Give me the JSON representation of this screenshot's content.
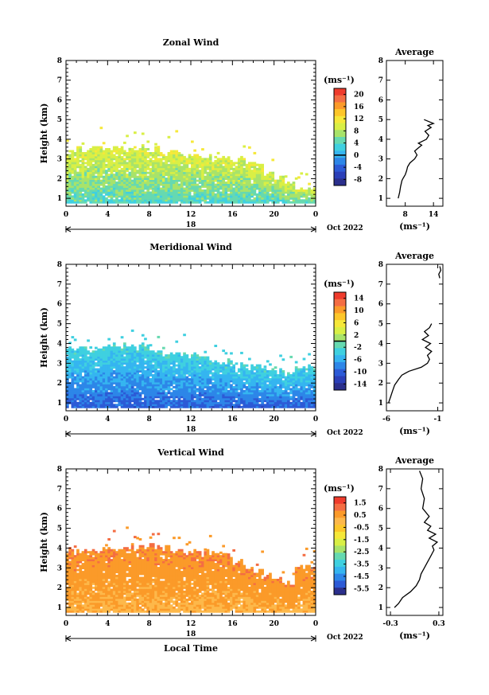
{
  "chart_data": [
    {
      "type": "heatmap",
      "title": "Zonal Wind",
      "ylabel": "Height (km)",
      "xlabel": "",
      "ylim": [
        0.6,
        8
      ],
      "xlim": [
        0,
        24
      ],
      "yticks": [
        "1",
        "2",
        "3",
        "4",
        "5",
        "6",
        "7",
        "8"
      ],
      "xticks": [
        "0",
        "4",
        "8",
        "12",
        "16",
        "20",
        "0"
      ],
      "day_label": "18",
      "date_label": "Oct 2022",
      "colorbar": {
        "unit": "(ms⁻¹)",
        "labels": [
          "20",
          "16",
          "12",
          "8",
          "4",
          "0",
          "-4",
          "-8"
        ],
        "colors": [
          "#ef3b2c",
          "#f46d43",
          "#fb9a29",
          "#fdc629",
          "#f6e839",
          "#d9ef45",
          "#a8e36a",
          "#66d9b0",
          "#3fd0e0",
          "#35b5f0",
          "#2d86e8",
          "#2c5ad6",
          "#2b3fb8",
          "#2b2f8c"
        ],
        "zero_line": true
      },
      "field": {
        "top_km": [
          3.4,
          3.4,
          3.45,
          3.4,
          3.5,
          3.4,
          3.5,
          3.6,
          3.4,
          3.3,
          3.3,
          3.2,
          3.2,
          3.1,
          3.0,
          3.0,
          3.0,
          2.8,
          2.6,
          2.3,
          2.0,
          1.6,
          1.4,
          1.4
        ],
        "base_value": 4,
        "top_value": 10,
        "noise": 4
      },
      "profile": {
        "title": "Average",
        "xlabel": "(ms⁻¹)",
        "xlim": [
          4,
          16
        ],
        "xticks": [
          "8",
          "14"
        ],
        "height": [
          1.0,
          1.3,
          1.6,
          1.9,
          2.0,
          2.2,
          2.4,
          2.6,
          2.8,
          3.0,
          3.2,
          3.4,
          3.6,
          3.7,
          3.8,
          4.0,
          4.2,
          4.4,
          4.6,
          4.7,
          4.8,
          4.9,
          5.0
        ],
        "value": [
          6.5,
          6.8,
          7.0,
          7.3,
          7.5,
          8.0,
          8.3,
          8.5,
          9.0,
          10.0,
          10.5,
          10.0,
          11.0,
          11.5,
          10.8,
          12.5,
          13.0,
          12.2,
          13.5,
          12.8,
          14.0,
          13.0,
          12.0
        ]
      }
    },
    {
      "type": "heatmap",
      "title": "Meridional Wind",
      "ylabel": "Height (km)",
      "xlabel": "",
      "ylim": [
        0.6,
        8
      ],
      "xlim": [
        0,
        24
      ],
      "yticks": [
        "1",
        "2",
        "3",
        "4",
        "5",
        "6",
        "7",
        "8"
      ],
      "xticks": [
        "0",
        "4",
        "8",
        "12",
        "16",
        "20",
        "0"
      ],
      "day_label": "18",
      "date_label": "Oct 2022",
      "colorbar": {
        "unit": "(ms⁻¹)",
        "labels": [
          "14",
          "10",
          "6",
          "2",
          "-2",
          "-6",
          "-10",
          "-14"
        ],
        "colors": [
          "#ef3b2c",
          "#f46d43",
          "#fb9a29",
          "#fdc629",
          "#f6e839",
          "#d9ef45",
          "#a8e36a",
          "#66d9b0",
          "#3fd0e0",
          "#35b5f0",
          "#2d86e8",
          "#2c5ad6",
          "#2b3fb8",
          "#2b2f8c"
        ],
        "zero_line": true
      },
      "field": {
        "top_km": [
          3.7,
          3.7,
          3.6,
          3.7,
          3.8,
          3.8,
          3.8,
          3.9,
          3.6,
          3.4,
          3.4,
          3.3,
          3.3,
          3.2,
          3.1,
          3.0,
          2.9,
          2.8,
          2.8,
          2.7,
          2.6,
          2.4,
          2.8,
          2.8
        ],
        "base_value": -10,
        "top_value": -3,
        "noise": 3
      },
      "profile": {
        "title": "Average",
        "xlabel": "(ms⁻¹)",
        "xlim": [
          -6,
          -0.5
        ],
        "xticks": [
          "-6",
          "-1"
        ],
        "height": [
          1.0,
          1.3,
          1.6,
          1.9,
          2.2,
          2.4,
          2.6,
          2.8,
          3.0,
          3.2,
          3.4,
          3.6,
          3.8,
          4.0,
          4.2,
          4.4,
          4.6,
          4.8,
          5.0,
          7.3,
          7.5,
          7.7,
          7.9
        ],
        "value": [
          -5.8,
          -5.6,
          -5.4,
          -5.2,
          -4.8,
          -4.5,
          -3.8,
          -2.6,
          -2.0,
          -1.8,
          -2.0,
          -1.6,
          -2.2,
          -1.7,
          -2.5,
          -1.9,
          -2.3,
          -1.8,
          -1.6,
          -0.8,
          -0.9,
          -0.7,
          -0.8
        ]
      }
    },
    {
      "type": "heatmap",
      "title": "Vertical Wind",
      "ylabel": "Height (km)",
      "xlabel": "Local Time",
      "ylim": [
        0.6,
        8
      ],
      "xlim": [
        0,
        24
      ],
      "yticks": [
        "1",
        "2",
        "3",
        "4",
        "5",
        "6",
        "7",
        "8"
      ],
      "xticks": [
        "0",
        "4",
        "8",
        "12",
        "16",
        "20",
        "0"
      ],
      "day_label": "18",
      "date_label": "Oct 2022",
      "colorbar": {
        "unit": "(ms⁻¹)",
        "labels": [
          "1.5",
          "0.5",
          "-0.5",
          "-1.5",
          "-2.5",
          "-3.5",
          "-4.5",
          "-5.5"
        ],
        "colors": [
          "#ef3b2c",
          "#f46d43",
          "#fb9a29",
          "#fdb84a",
          "#fdc629",
          "#f6e839",
          "#d9ef45",
          "#a8e36a",
          "#66d9b0",
          "#3fd0e0",
          "#35b5f0",
          "#2d86e8",
          "#2c5ad6",
          "#2b2f8c"
        ],
        "zero_line": false
      },
      "field": {
        "top_km": [
          3.8,
          3.9,
          3.8,
          3.9,
          3.9,
          4.0,
          4.0,
          4.1,
          4.0,
          4.0,
          3.9,
          3.8,
          3.8,
          3.7,
          3.7,
          3.6,
          3.2,
          3.0,
          2.8,
          2.6,
          2.4,
          2.2,
          3.0,
          3.1
        ],
        "base_value": 0.2,
        "top_value": 0.8,
        "noise": 0.5
      },
      "profile": {
        "title": "Average",
        "xlabel": "(ms⁻¹)",
        "xlim": [
          -0.35,
          0.35
        ],
        "xticks": [
          "-0.3",
          "0.3"
        ],
        "height": [
          1.0,
          1.2,
          1.5,
          1.8,
          2.1,
          2.4,
          2.7,
          3.0,
          3.3,
          3.6,
          3.9,
          4.1,
          4.3,
          4.5,
          4.7,
          4.9,
          5.1,
          5.3,
          5.6,
          6.0,
          6.5,
          7.0,
          7.5,
          7.9
        ],
        "value": [
          -0.25,
          -0.2,
          -0.15,
          -0.05,
          0.02,
          0.06,
          0.08,
          0.12,
          0.16,
          0.2,
          0.24,
          0.22,
          0.28,
          0.18,
          0.26,
          0.16,
          0.2,
          0.12,
          0.18,
          0.1,
          0.12,
          0.08,
          0.1,
          0.06
        ]
      }
    }
  ]
}
